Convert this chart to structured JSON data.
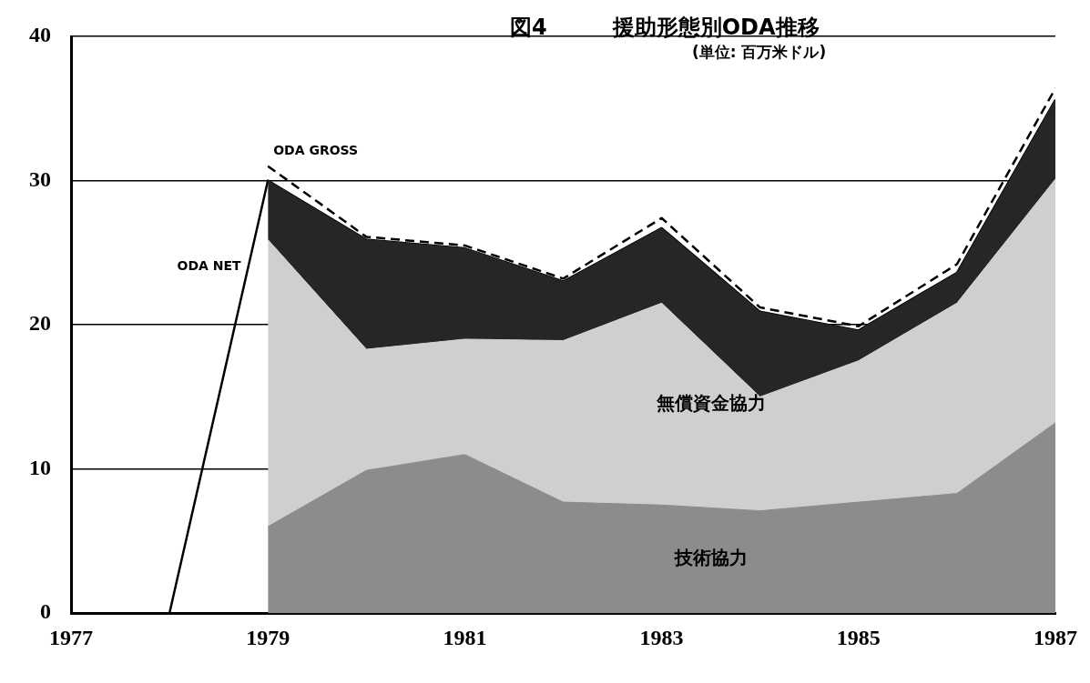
{
  "chart_data": {
    "type": "area",
    "title": "図4　　　援助形態別ODA推移",
    "subtitle": "(単位: 百万米ドル)",
    "x": [
      1979,
      1980,
      1981,
      1982,
      1983,
      1984,
      1985,
      1986,
      1987
    ],
    "stacked": true,
    "series": [
      {
        "name": "技術協力",
        "color": "#8c8c8c",
        "values": [
          6.0,
          9.9,
          11.0,
          7.7,
          7.5,
          7.1,
          7.7,
          8.3,
          13.2
        ]
      },
      {
        "name": "無償資金協力",
        "color": "#cfcfcf",
        "values": [
          19.9,
          8.4,
          8.0,
          11.2,
          14.0,
          7.9,
          9.8,
          13.2,
          16.9
        ]
      },
      {
        "color": "#262626",
        "values": [
          4.1,
          7.6,
          6.3,
          4.1,
          5.2,
          5.9,
          2.1,
          2.1,
          5.5
        ]
      },
      {
        "name": "ODA NET",
        "type": "line",
        "color": "#000000",
        "line_style": "solid",
        "x": [
          1977,
          1978,
          1979,
          1980,
          1981,
          1982,
          1983,
          1984,
          1985,
          1986,
          1987
        ],
        "values": [
          0,
          0,
          30.0,
          25.9,
          25.3,
          23.0,
          26.7,
          20.9,
          19.6,
          23.6,
          35.6
        ]
      },
      {
        "name": "ODA GROSS",
        "type": "line",
        "color": "#000000",
        "line_style": "dashed",
        "values": [
          31.0,
          26.1,
          25.5,
          23.2,
          27.4,
          21.2,
          19.9,
          24.2,
          36.4
        ]
      }
    ],
    "xlim": [
      1977,
      1987
    ],
    "xticks": [
      1977,
      1979,
      1981,
      1983,
      1985,
      1987
    ],
    "ylim": [
      0,
      40
    ],
    "yticks": [
      0,
      10,
      20,
      30,
      40
    ],
    "grid": "y",
    "legend": false,
    "marker": "none"
  }
}
